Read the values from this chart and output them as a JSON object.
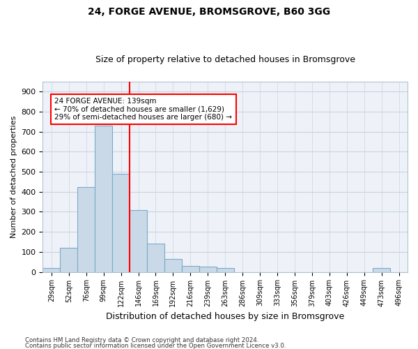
{
  "title1": "24, FORGE AVENUE, BROMSGROVE, B60 3GG",
  "title2": "Size of property relative to detached houses in Bromsgrove",
  "xlabel": "Distribution of detached houses by size in Bromsgrove",
  "ylabel": "Number of detached properties",
  "categories": [
    "29sqm",
    "52sqm",
    "76sqm",
    "99sqm",
    "122sqm",
    "146sqm",
    "169sqm",
    "192sqm",
    "216sqm",
    "239sqm",
    "263sqm",
    "286sqm",
    "309sqm",
    "333sqm",
    "356sqm",
    "379sqm",
    "403sqm",
    "426sqm",
    "449sqm",
    "473sqm",
    "496sqm"
  ],
  "values": [
    20,
    120,
    425,
    730,
    490,
    310,
    140,
    65,
    30,
    25,
    20,
    0,
    0,
    0,
    0,
    0,
    0,
    0,
    0,
    20,
    0
  ],
  "bar_color": "#c9d9e8",
  "bar_edge_color": "#7aaac8",
  "vline_pos": 4.5,
  "annotation_line1": "24 FORGE AVENUE: 139sqm",
  "annotation_line2": "← 70% of detached houses are smaller (1,629)",
  "annotation_line3": "29% of semi-detached houses are larger (680) →",
  "annotation_box_color": "white",
  "annotation_box_edgecolor": "red",
  "vline_color": "red",
  "ylim": [
    0,
    950
  ],
  "yticks": [
    0,
    100,
    200,
    300,
    400,
    500,
    600,
    700,
    800,
    900
  ],
  "grid_color": "#c8d4e0",
  "bg_color": "#eef2f8",
  "footnote1": "Contains HM Land Registry data © Crown copyright and database right 2024.",
  "footnote2": "Contains public sector information licensed under the Open Government Licence v3.0."
}
